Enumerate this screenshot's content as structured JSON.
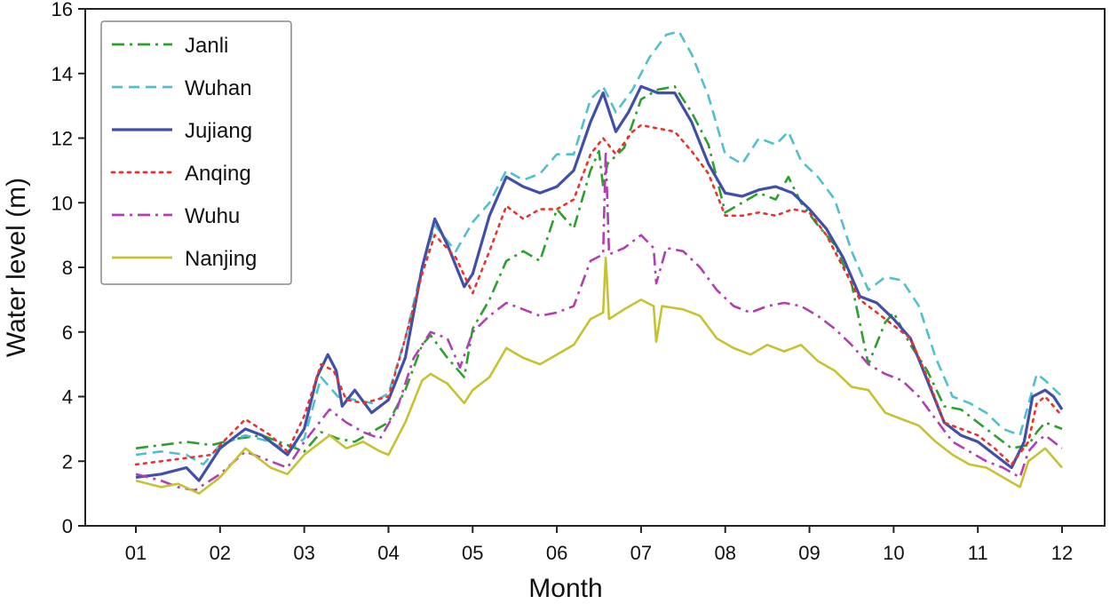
{
  "chart_data": {
    "type": "line",
    "title": "",
    "xlabel": "Month",
    "ylabel": "Water level (m)",
    "x_tick_labels": [
      "01",
      "02",
      "03",
      "04",
      "05",
      "06",
      "07",
      "08",
      "09",
      "10",
      "11",
      "12"
    ],
    "xlim": [
      1,
      12
    ],
    "ylim": [
      0,
      16
    ],
    "yticks": [
      0,
      2,
      4,
      6,
      8,
      10,
      12,
      14,
      16
    ],
    "grid": false,
    "legend_position": "top-left",
    "series": [
      {
        "name": "Janli",
        "color": "#2ca02c",
        "dash": "dashdot",
        "x": [
          1.0,
          1.3,
          1.6,
          1.9,
          2.2,
          2.5,
          2.8,
          3.0,
          3.2,
          3.4,
          3.6,
          3.8,
          4.0,
          4.2,
          4.4,
          4.5,
          4.7,
          4.9,
          5.0,
          5.2,
          5.4,
          5.6,
          5.8,
          6.0,
          6.2,
          6.4,
          6.5,
          6.55,
          6.6,
          6.8,
          7.0,
          7.2,
          7.4,
          7.6,
          7.8,
          8.0,
          8.2,
          8.4,
          8.6,
          8.75,
          8.9,
          9.1,
          9.3,
          9.5,
          9.7,
          9.9,
          10.0,
          10.2,
          10.4,
          10.6,
          10.8,
          11.0,
          11.2,
          11.4,
          11.6,
          11.7,
          11.8,
          12.0
        ],
        "y": [
          2.4,
          2.5,
          2.6,
          2.5,
          2.7,
          2.8,
          2.5,
          2.3,
          2.9,
          2.7,
          2.6,
          2.9,
          3.2,
          4.2,
          5.6,
          5.9,
          5.2,
          4.6,
          6.1,
          7.0,
          8.2,
          8.5,
          8.2,
          9.8,
          9.2,
          11.0,
          11.6,
          10.5,
          11.2,
          11.7,
          13.2,
          13.5,
          13.6,
          12.8,
          11.8,
          9.7,
          10.0,
          10.3,
          10.1,
          10.8,
          10.0,
          9.3,
          8.7,
          7.5,
          5.0,
          6.3,
          6.6,
          5.6,
          4.8,
          3.7,
          3.6,
          3.2,
          2.8,
          2.4,
          2.5,
          2.9,
          3.2,
          3.0
        ]
      },
      {
        "name": "Wuhan",
        "color": "#4fc0cc",
        "dash": "dashed",
        "x": [
          1.0,
          1.3,
          1.6,
          1.8,
          2.0,
          2.3,
          2.6,
          2.8,
          3.0,
          3.2,
          3.4,
          3.6,
          3.8,
          4.0,
          4.2,
          4.4,
          4.55,
          4.8,
          5.0,
          5.2,
          5.4,
          5.6,
          5.8,
          6.0,
          6.2,
          6.4,
          6.55,
          6.7,
          6.9,
          7.1,
          7.3,
          7.45,
          7.6,
          7.8,
          8.0,
          8.2,
          8.4,
          8.6,
          8.75,
          8.9,
          9.1,
          9.3,
          9.5,
          9.7,
          9.9,
          10.1,
          10.3,
          10.5,
          10.7,
          10.9,
          11.1,
          11.3,
          11.5,
          11.7,
          11.8,
          12.0
        ],
        "y": [
          2.2,
          2.3,
          2.2,
          1.9,
          2.5,
          2.8,
          2.6,
          2.3,
          2.7,
          4.6,
          4.0,
          3.9,
          3.8,
          4.1,
          5.8,
          8.0,
          9.3,
          8.5,
          9.4,
          10.0,
          11.0,
          10.7,
          10.9,
          11.5,
          11.5,
          13.2,
          13.6,
          12.8,
          13.5,
          14.5,
          15.2,
          15.3,
          14.6,
          13.3,
          11.5,
          11.2,
          12.0,
          11.8,
          12.2,
          11.3,
          10.8,
          10.1,
          8.5,
          7.3,
          7.7,
          7.6,
          6.8,
          5.2,
          4.0,
          3.8,
          3.5,
          3.0,
          2.8,
          4.7,
          4.5,
          4.0
        ]
      },
      {
        "name": "Jujiang",
        "color": "#3f4faa",
        "dash": "solid",
        "x": [
          1.0,
          1.3,
          1.6,
          1.75,
          2.0,
          2.3,
          2.5,
          2.8,
          3.0,
          3.15,
          3.28,
          3.38,
          3.45,
          3.6,
          3.8,
          4.0,
          4.2,
          4.4,
          4.55,
          4.7,
          4.9,
          5.0,
          5.2,
          5.4,
          5.6,
          5.8,
          6.0,
          6.2,
          6.4,
          6.55,
          6.7,
          6.85,
          7.0,
          7.2,
          7.4,
          7.6,
          7.8,
          8.0,
          8.2,
          8.4,
          8.6,
          8.8,
          9.0,
          9.2,
          9.4,
          9.6,
          9.8,
          10.0,
          10.2,
          10.4,
          10.6,
          10.8,
          11.0,
          11.2,
          11.4,
          11.55,
          11.65,
          11.8,
          11.9,
          12.0
        ],
        "y": [
          1.5,
          1.6,
          1.8,
          1.4,
          2.4,
          3.0,
          2.8,
          2.2,
          3.0,
          4.6,
          5.3,
          4.8,
          3.7,
          4.2,
          3.5,
          3.9,
          5.2,
          8.0,
          9.5,
          8.7,
          7.4,
          7.8,
          9.6,
          10.8,
          10.5,
          10.3,
          10.5,
          11.0,
          12.5,
          13.4,
          12.2,
          12.8,
          13.6,
          13.4,
          13.4,
          12.5,
          11.2,
          10.3,
          10.2,
          10.4,
          10.5,
          10.3,
          9.8,
          9.2,
          8.3,
          7.1,
          6.9,
          6.4,
          5.8,
          4.5,
          3.2,
          2.8,
          2.6,
          2.2,
          1.8,
          2.6,
          4.0,
          4.2,
          4.0,
          3.6
        ]
      },
      {
        "name": "Anqing",
        "color": "#e8322c",
        "dash": "dotted",
        "x": [
          1.0,
          1.3,
          1.6,
          1.9,
          2.0,
          2.3,
          2.6,
          2.8,
          3.0,
          3.2,
          3.35,
          3.5,
          3.7,
          4.0,
          4.2,
          4.4,
          4.55,
          4.8,
          5.0,
          5.2,
          5.4,
          5.6,
          5.8,
          6.0,
          6.2,
          6.4,
          6.55,
          6.7,
          6.9,
          7.0,
          7.2,
          7.4,
          7.6,
          7.8,
          8.0,
          8.2,
          8.4,
          8.6,
          8.8,
          9.0,
          9.2,
          9.4,
          9.6,
          9.8,
          10.0,
          10.2,
          10.4,
          10.6,
          10.8,
          11.0,
          11.2,
          11.4,
          11.6,
          11.7,
          11.8,
          12.0
        ],
        "y": [
          1.9,
          2.0,
          2.1,
          2.2,
          2.5,
          3.3,
          2.8,
          2.3,
          3.4,
          5.0,
          4.8,
          3.9,
          3.8,
          4.0,
          5.8,
          7.8,
          9.0,
          8.3,
          7.2,
          8.5,
          9.9,
          9.5,
          9.8,
          9.8,
          10.1,
          11.5,
          12.0,
          11.5,
          12.2,
          12.4,
          12.3,
          12.2,
          11.6,
          10.9,
          9.6,
          9.6,
          9.7,
          9.6,
          9.8,
          9.7,
          9.0,
          8.0,
          7.0,
          6.6,
          6.2,
          5.8,
          4.6,
          3.2,
          3.0,
          2.8,
          2.4,
          1.9,
          2.6,
          3.8,
          4.0,
          3.4
        ]
      },
      {
        "name": "Wuhu",
        "color": "#b23fb2",
        "dash": "dashdot",
        "x": [
          1.0,
          1.3,
          1.5,
          1.7,
          2.0,
          2.3,
          2.6,
          2.8,
          3.0,
          3.3,
          3.5,
          3.7,
          3.9,
          4.1,
          4.3,
          4.5,
          4.7,
          4.85,
          5.0,
          5.2,
          5.4,
          5.6,
          5.8,
          6.0,
          6.2,
          6.4,
          6.55,
          6.58,
          6.62,
          6.8,
          7.0,
          7.15,
          7.18,
          7.3,
          7.5,
          7.7,
          7.9,
          8.1,
          8.3,
          8.5,
          8.7,
          8.9,
          9.1,
          9.3,
          9.5,
          9.7,
          9.9,
          10.1,
          10.3,
          10.5,
          10.7,
          10.9,
          11.1,
          11.3,
          11.5,
          11.6,
          11.7,
          11.8,
          12.0
        ],
        "y": [
          1.6,
          1.4,
          1.2,
          1.1,
          1.6,
          2.3,
          2.0,
          1.8,
          2.6,
          3.6,
          3.2,
          2.9,
          2.7,
          3.6,
          5.2,
          6.0,
          5.8,
          4.9,
          6.0,
          6.5,
          6.9,
          6.7,
          6.5,
          6.6,
          6.8,
          8.2,
          8.4,
          11.6,
          8.4,
          8.6,
          9.0,
          8.6,
          7.5,
          8.6,
          8.5,
          8.0,
          7.3,
          6.8,
          6.6,
          6.8,
          6.9,
          6.8,
          6.5,
          6.1,
          5.6,
          5.0,
          4.7,
          4.5,
          4.0,
          3.3,
          2.6,
          2.3,
          2.0,
          1.8,
          1.5,
          2.3,
          2.6,
          2.8,
          2.4
        ]
      },
      {
        "name": "Nanjing",
        "color": "#c6c230",
        "dash": "solid",
        "x": [
          1.0,
          1.3,
          1.5,
          1.75,
          2.0,
          2.3,
          2.6,
          2.8,
          3.0,
          3.3,
          3.5,
          3.7,
          3.9,
          4.0,
          4.2,
          4.4,
          4.5,
          4.7,
          4.9,
          5.0,
          5.2,
          5.4,
          5.6,
          5.8,
          6.0,
          6.2,
          6.4,
          6.55,
          6.58,
          6.62,
          6.8,
          7.0,
          7.15,
          7.18,
          7.25,
          7.5,
          7.7,
          7.9,
          8.1,
          8.3,
          8.5,
          8.7,
          8.9,
          9.1,
          9.3,
          9.5,
          9.7,
          9.9,
          10.1,
          10.3,
          10.5,
          10.7,
          10.9,
          11.1,
          11.3,
          11.5,
          11.6,
          11.7,
          11.8,
          12.0
        ],
        "y": [
          1.4,
          1.2,
          1.3,
          1.0,
          1.5,
          2.4,
          1.8,
          1.6,
          2.2,
          2.8,
          2.4,
          2.6,
          2.3,
          2.2,
          3.2,
          4.5,
          4.7,
          4.4,
          3.8,
          4.2,
          4.6,
          5.5,
          5.2,
          5.0,
          5.3,
          5.6,
          6.4,
          6.6,
          8.3,
          6.4,
          6.7,
          7.0,
          6.8,
          5.7,
          6.8,
          6.7,
          6.5,
          5.8,
          5.5,
          5.3,
          5.6,
          5.4,
          5.6,
          5.1,
          4.8,
          4.3,
          4.2,
          3.5,
          3.3,
          3.1,
          2.6,
          2.2,
          1.9,
          1.8,
          1.5,
          1.2,
          2.0,
          2.2,
          2.4,
          1.8
        ]
      }
    ]
  }
}
